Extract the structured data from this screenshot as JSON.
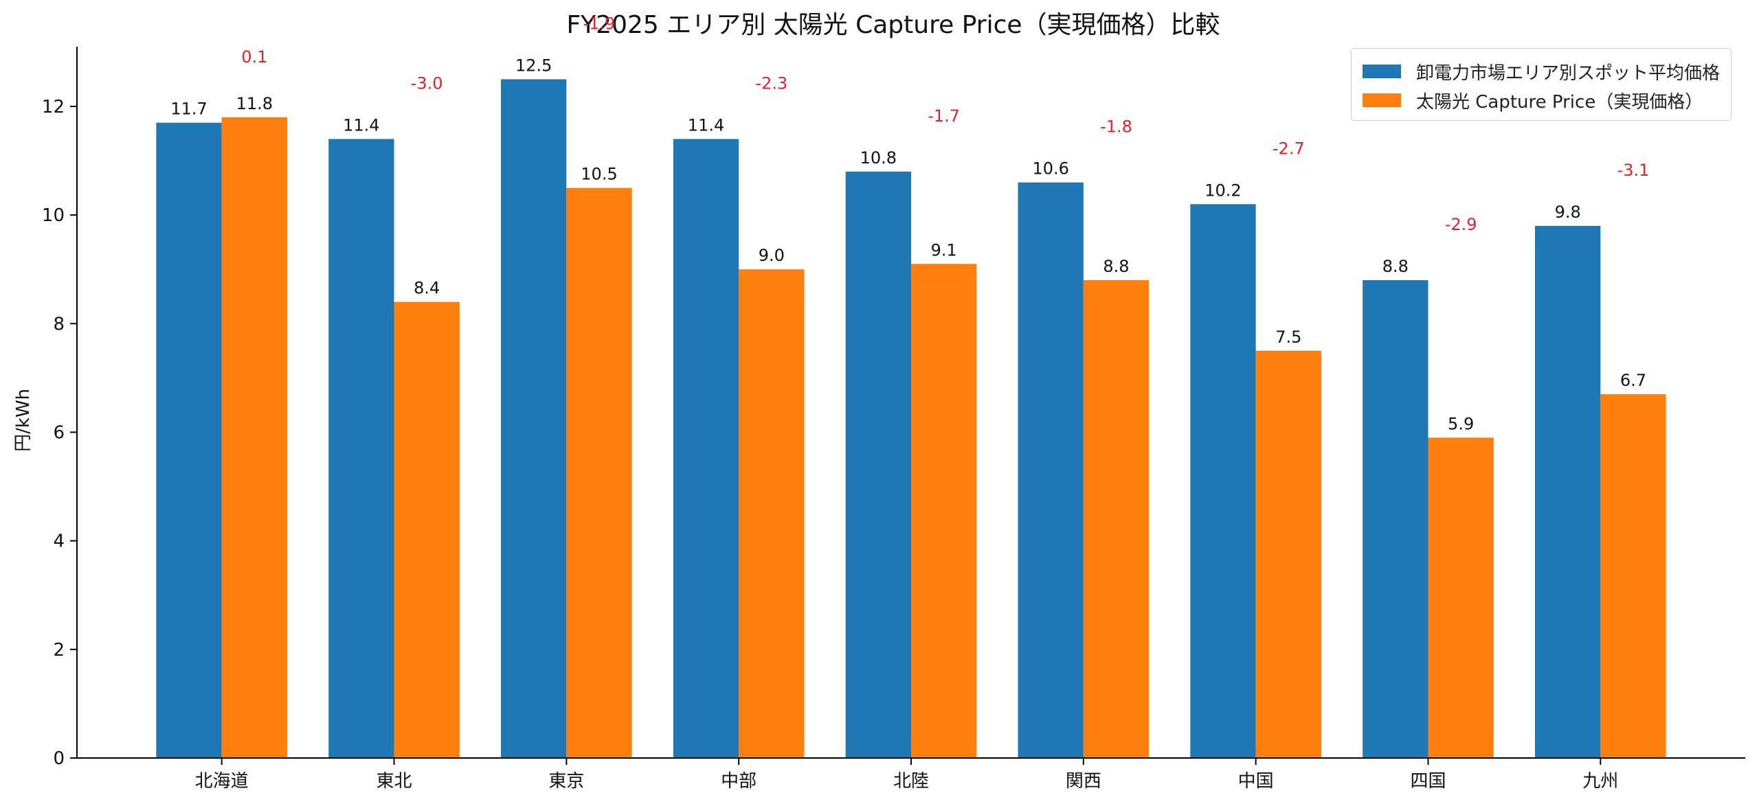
{
  "chart_data": {
    "type": "bar",
    "title": "FY2025 エリア別 太陽光 Capture Price（実現価格）比較",
    "ylabel": "円/kWh",
    "xlabel": "",
    "ylim": [
      0,
      13.1
    ],
    "yticks": [
      0,
      2,
      4,
      6,
      8,
      10,
      12
    ],
    "grid": false,
    "legend_position": "top-right",
    "categories": [
      "北海道",
      "東北",
      "東京",
      "中部",
      "北陸",
      "関西",
      "中国",
      "四国",
      "九州"
    ],
    "series": [
      {
        "name": "卸電力市場エリア別スポット平均価格",
        "color": "#1f77b4",
        "values": [
          11.7,
          11.4,
          12.5,
          11.4,
          10.8,
          10.6,
          10.2,
          8.8,
          9.8
        ],
        "labels": [
          "11.7",
          "11.4",
          "12.5",
          "11.4",
          "10.8",
          "10.6",
          "10.2",
          "8.8",
          "9.8"
        ]
      },
      {
        "name": "太陽光 Capture Price（実現価格）",
        "color": "#ff7f0e",
        "values": [
          11.8,
          8.4,
          10.5,
          9.0,
          9.1,
          8.8,
          7.5,
          5.9,
          6.7
        ],
        "labels": [
          "11.8",
          "8.4",
          "10.5",
          "9.0",
          "9.1",
          "8.8",
          "7.5",
          "5.9",
          "6.7"
        ]
      }
    ],
    "differences": {
      "color": "#e8202a",
      "values": [
        0.1,
        -3.0,
        -1.9,
        -2.3,
        -1.7,
        -1.8,
        -2.7,
        -2.9,
        -3.1
      ],
      "labels": [
        "0.1",
        "-3.0",
        "-1.9",
        "-2.3",
        "-1.7",
        "-1.8",
        "-2.7",
        "-2.9",
        "-3.1"
      ]
    }
  }
}
